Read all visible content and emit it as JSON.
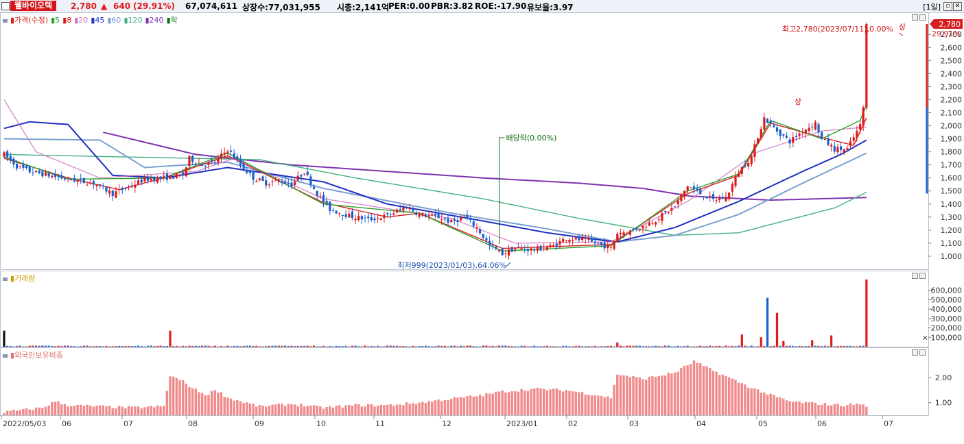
{
  "header": {
    "stock_name": "웰바이오텍",
    "price": "2,780",
    "change": "640",
    "change_pct": "(29.91%)",
    "volume": "67,074,611",
    "listed_shares": "상장수:77,031,955",
    "market_cap": "시총:2,141억",
    "per": "PER:0.00",
    "pbr": "PBR:3.82",
    "roe": "ROE:-17.90",
    "float_ratio": "유보율:3.97",
    "period": "[1일]",
    "colors": {
      "up": "#e01a1a",
      "down": "#1a5fd0",
      "name_bg": "#d4141a"
    }
  },
  "price_panel": {
    "legend": [
      {
        "label": "가격(수정)",
        "color": "#d42020"
      },
      {
        "label": "5",
        "color": "#2ca02c"
      },
      {
        "label": "8",
        "color": "#d42020"
      },
      {
        "label": "20",
        "color": "#d070c0"
      },
      {
        "label": "45",
        "color": "#1f2fc0"
      },
      {
        "label": "60",
        "color": "#7aa0d0"
      },
      {
        "label": "120",
        "color": "#40b080"
      },
      {
        "label": "240",
        "color": "#8030b0"
      },
      {
        "label": "락",
        "color": "#107010"
      }
    ],
    "annot_high": "최고2,780(2023/07/11),0.00%",
    "annot_low": "최저999(2023/01/03),64.06%",
    "annot_div": "배당락(0.00%)",
    "marker_sang": "상",
    "price_tag": "2,780",
    "pct_tag": "29.91%"
  },
  "volume_panel": {
    "label": "거래량"
  },
  "foreign_panel": {
    "label": "외국인보유비중"
  },
  "chart_data": [
    {
      "type": "candlestick",
      "title": "",
      "x_tick_labels": [
        "2022/05/03",
        "06",
        "07",
        "08",
        "09",
        "10",
        "11",
        "12",
        "2023/01",
        "02",
        "03",
        "04",
        "05",
        "06",
        "07"
      ],
      "y_tick_labels": [
        "1,000",
        "1,100",
        "1,200",
        "1,300",
        "1,400",
        "1,500",
        "1,600",
        "1,700",
        "1,800",
        "1,900",
        "2,000",
        "2,100",
        "2,200",
        "2,300",
        "2,400",
        "2,500",
        "2,600",
        "2,700"
      ],
      "ylim": [
        900,
        2780
      ],
      "close_path": [
        [
          0,
          1780
        ],
        [
          4,
          1690
        ],
        [
          8,
          1650
        ],
        [
          14,
          1620
        ],
        [
          20,
          1590
        ],
        [
          28,
          1560
        ],
        [
          34,
          1480
        ],
        [
          38,
          1520
        ],
        [
          44,
          1590
        ],
        [
          50,
          1600
        ],
        [
          56,
          1620
        ],
        [
          58,
          1750
        ],
        [
          62,
          1700
        ],
        [
          66,
          1720
        ],
        [
          70,
          1820
        ],
        [
          74,
          1700
        ],
        [
          78,
          1600
        ],
        [
          82,
          1560
        ],
        [
          86,
          1580
        ],
        [
          90,
          1550
        ],
        [
          94,
          1650
        ],
        [
          98,
          1480
        ],
        [
          102,
          1360
        ],
        [
          108,
          1310
        ],
        [
          114,
          1280
        ],
        [
          120,
          1310
        ],
        [
          126,
          1380
        ],
        [
          130,
          1320
        ],
        [
          136,
          1300
        ],
        [
          140,
          1260
        ],
        [
          144,
          1300
        ],
        [
          148,
          1220
        ],
        [
          152,
          1080
        ],
        [
          156,
          1020
        ],
        [
          160,
          1060
        ],
        [
          166,
          1050
        ],
        [
          172,
          1080
        ],
        [
          176,
          1140
        ],
        [
          182,
          1120
        ],
        [
          188,
          1080
        ],
        [
          190,
          1060
        ],
        [
          192,
          1180
        ],
        [
          196,
          1190
        ],
        [
          200,
          1230
        ],
        [
          204,
          1280
        ],
        [
          210,
          1380
        ],
        [
          214,
          1540
        ],
        [
          218,
          1480
        ],
        [
          222,
          1430
        ],
        [
          226,
          1450
        ],
        [
          230,
          1650
        ],
        [
          234,
          1760
        ],
        [
          236,
          1920
        ],
        [
          238,
          2060
        ],
        [
          242,
          1960
        ],
        [
          246,
          1880
        ],
        [
          250,
          1960
        ],
        [
          254,
          2020
        ],
        [
          256,
          1900
        ],
        [
          260,
          1820
        ],
        [
          264,
          1820
        ],
        [
          268,
          2000
        ],
        [
          269,
          2140
        ],
        [
          270,
          2780
        ]
      ],
      "ma_series": [
        {
          "name": "5",
          "points": [
            [
              0,
              1760
            ],
            [
              20,
              1590
            ],
            [
              50,
              1600
            ],
            [
              70,
              1790
            ],
            [
              100,
              1400
            ],
            [
              130,
              1330
            ],
            [
              156,
              1040
            ],
            [
              190,
              1080
            ],
            [
              214,
              1500
            ],
            [
              230,
              1630
            ],
            [
              240,
              2040
            ],
            [
              256,
              1900
            ],
            [
              268,
              2040
            ],
            [
              270,
              2160
            ]
          ]
        },
        {
          "name": "8",
          "points": [
            [
              0,
              1750
            ],
            [
              20,
              1600
            ],
            [
              36,
              1510
            ],
            [
              50,
              1600
            ],
            [
              70,
              1770
            ],
            [
              100,
              1410
            ],
            [
              120,
              1300
            ],
            [
              130,
              1330
            ],
            [
              156,
              1060
            ],
            [
              190,
              1090
            ],
            [
              214,
              1480
            ],
            [
              230,
              1620
            ],
            [
              240,
              2020
            ],
            [
              256,
              1910
            ],
            [
              266,
              1850
            ],
            [
              270,
              2060
            ]
          ]
        },
        {
          "name": "20",
          "points": [
            [
              0,
              2200
            ],
            [
              10,
              1800
            ],
            [
              30,
              1600
            ],
            [
              60,
              1650
            ],
            [
              72,
              1750
            ],
            [
              100,
              1440
            ],
            [
              140,
              1290
            ],
            [
              160,
              1100
            ],
            [
              190,
              1110
            ],
            [
              214,
              1420
            ],
            [
              236,
              1800
            ],
            [
              256,
              1960
            ],
            [
              270,
              1990
            ]
          ]
        },
        {
          "name": "45",
          "points": [
            [
              0,
              1980
            ],
            [
              8,
              2030
            ],
            [
              20,
              2010
            ],
            [
              34,
              1620
            ],
            [
              50,
              1600
            ],
            [
              70,
              1680
            ],
            [
              100,
              1570
            ],
            [
              120,
              1400
            ],
            [
              150,
              1270
            ],
            [
              170,
              1180
            ],
            [
              188,
              1120
            ],
            [
              192,
              1110
            ],
            [
              210,
              1220
            ],
            [
              230,
              1420
            ],
            [
              250,
              1650
            ],
            [
              262,
              1780
            ],
            [
              270,
              1890
            ]
          ]
        },
        {
          "name": "60",
          "points": [
            [
              0,
              1900
            ],
            [
              30,
              1890
            ],
            [
              44,
              1680
            ],
            [
              70,
              1720
            ],
            [
              100,
              1520
            ],
            [
              140,
              1330
            ],
            [
              170,
              1210
            ],
            [
              192,
              1110
            ],
            [
              210,
              1160
            ],
            [
              230,
              1320
            ],
            [
              250,
              1560
            ],
            [
              270,
              1790
            ]
          ]
        },
        {
          "name": "120",
          "points": [
            [
              0,
              1780
            ],
            [
              40,
              1760
            ],
            [
              80,
              1740
            ],
            [
              110,
              1600
            ],
            [
              150,
              1440
            ],
            [
              180,
              1290
            ],
            [
              210,
              1160
            ],
            [
              230,
              1180
            ],
            [
              260,
              1370
            ],
            [
              270,
              1490
            ]
          ]
        },
        {
          "name": "240",
          "points": [
            [
              31,
              1950
            ],
            [
              60,
              1780
            ],
            [
              90,
              1700
            ],
            [
              120,
              1650
            ],
            [
              150,
              1600
            ],
            [
              180,
              1560
            ],
            [
              200,
              1520
            ],
            [
              215,
              1460
            ],
            [
              240,
              1430
            ],
            [
              270,
              1450
            ]
          ]
        }
      ]
    },
    {
      "type": "bar",
      "title": "",
      "ylabel": "거래량",
      "y_tick_labels": [
        "100,000",
        "200,000",
        "300,000",
        "400,000",
        "500,000",
        "600,000"
      ],
      "ylim": [
        0,
        700000
      ],
      "spikes": [
        [
          0,
          170000,
          "down"
        ],
        [
          52,
          170000,
          "up"
        ],
        [
          192,
          45000,
          "up"
        ],
        [
          231,
          130000,
          "up"
        ],
        [
          237,
          100000,
          "up"
        ],
        [
          239,
          520000,
          "down"
        ],
        [
          242,
          360000,
          "up"
        ],
        [
          244,
          60000,
          "up"
        ],
        [
          253,
          70000,
          "up"
        ],
        [
          259,
          120000,
          "up"
        ],
        [
          270,
          716000,
          "up"
        ]
      ]
    },
    {
      "type": "bar",
      "title": "",
      "ylabel": "외국인보유비중",
      "y_tick_labels": [
        "1.00",
        "2.00"
      ],
      "ylim": [
        0.5,
        2.8
      ],
      "values_path": [
        [
          0,
          0.62
        ],
        [
          12,
          0.8
        ],
        [
          16,
          1.05
        ],
        [
          20,
          0.9
        ],
        [
          40,
          0.8
        ],
        [
          50,
          0.85
        ],
        [
          52,
          2.08
        ],
        [
          56,
          1.85
        ],
        [
          60,
          1.5
        ],
        [
          64,
          1.3
        ],
        [
          66,
          1.55
        ],
        [
          70,
          1.2
        ],
        [
          80,
          0.85
        ],
        [
          90,
          0.95
        ],
        [
          100,
          0.8
        ],
        [
          110,
          0.9
        ],
        [
          120,
          0.9
        ],
        [
          130,
          1.0
        ],
        [
          136,
          1.1
        ],
        [
          150,
          1.3
        ],
        [
          156,
          1.45
        ],
        [
          166,
          1.55
        ],
        [
          176,
          1.5
        ],
        [
          186,
          1.3
        ],
        [
          190,
          1.2
        ],
        [
          192,
          2.15
        ],
        [
          200,
          1.95
        ],
        [
          210,
          2.2
        ],
        [
          216,
          2.65
        ],
        [
          220,
          2.4
        ],
        [
          226,
          2.05
        ],
        [
          234,
          1.6
        ],
        [
          240,
          1.3
        ],
        [
          246,
          1.05
        ],
        [
          256,
          0.95
        ],
        [
          262,
          0.9
        ],
        [
          268,
          0.95
        ],
        [
          270,
          0.88
        ]
      ]
    }
  ]
}
